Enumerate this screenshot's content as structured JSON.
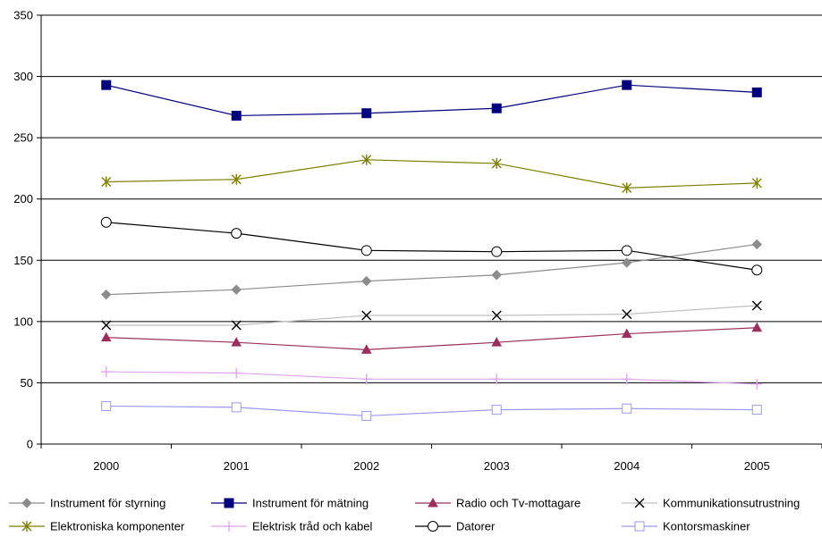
{
  "chart_data": {
    "type": "line",
    "title": "",
    "xlabel": "",
    "ylabel": "",
    "x": [
      "2000",
      "2001",
      "2002",
      "2003",
      "2004",
      "2005"
    ],
    "ylim": [
      0,
      350
    ],
    "yticks": [
      0,
      50,
      100,
      150,
      200,
      250,
      300,
      350
    ],
    "grid": "horizontal",
    "legend_position": "bottom",
    "series": [
      {
        "name": "Instrument för styrning",
        "values": [
          122,
          126,
          133,
          138,
          148,
          163
        ],
        "color": "#8c8c8c",
        "marker": "diamond"
      },
      {
        "name": "Instrument för mätning",
        "values": [
          293,
          268,
          270,
          274,
          293,
          287
        ],
        "color": "#00007f",
        "marker": "square-filled"
      },
      {
        "name": "Radio och Tv-mottagare",
        "values": [
          87,
          83,
          77,
          83,
          90,
          95
        ],
        "color": "#9b2f5e",
        "marker": "triangle"
      },
      {
        "name": "Kommunikationsutrustning",
        "values": [
          97,
          97,
          105,
          105,
          106,
          113
        ],
        "color": "#c0c0c0",
        "marker": "x"
      },
      {
        "name": "Elektroniska komponenter",
        "values": [
          214,
          216,
          232,
          229,
          209,
          213
        ],
        "color": "#7f7f00",
        "marker": "asterisk"
      },
      {
        "name": "Elektrisk tråd och kabel",
        "values": [
          59,
          58,
          53,
          53,
          53,
          49
        ],
        "color": "#e0a6ee",
        "marker": "plus"
      },
      {
        "name": "Datorer",
        "values": [
          181,
          172,
          158,
          157,
          158,
          142
        ],
        "color": "#000000",
        "marker": "circle-open"
      },
      {
        "name": "Kontorsmaskiner",
        "values": [
          31,
          30,
          23,
          28,
          29,
          28
        ],
        "color": "#9999ee",
        "marker": "square-open"
      }
    ]
  }
}
